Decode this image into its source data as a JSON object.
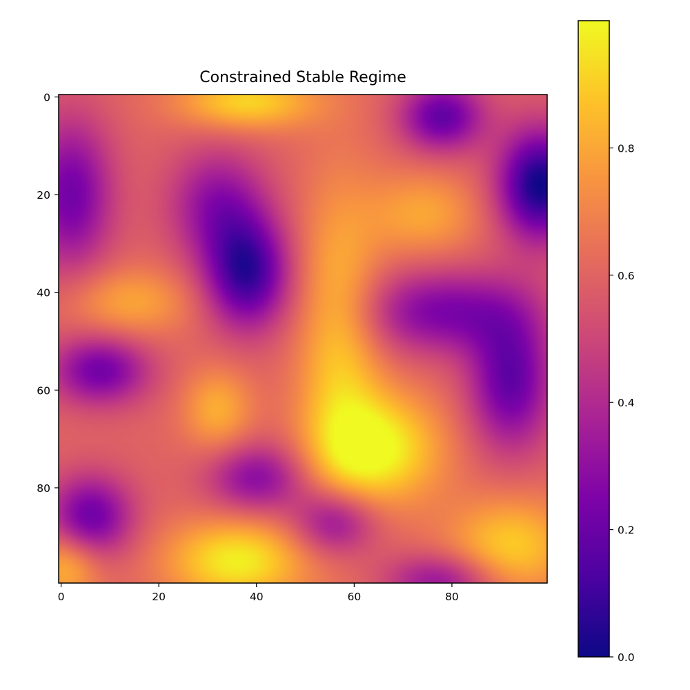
{
  "chart_data": {
    "type": "heatmap",
    "title": "Constrained Stable Regime",
    "xlabel": "",
    "ylabel": "",
    "colormap": "plasma",
    "grid_size": [
      100,
      100
    ],
    "xlim": [
      0,
      99
    ],
    "ylim": [
      99,
      0
    ],
    "x_ticks": [
      0,
      20,
      40,
      60,
      80
    ],
    "y_ticks": [
      0,
      20,
      40,
      60,
      80
    ],
    "colorbar": {
      "vmin": 0.0,
      "vmax": 1.0,
      "ticks": [
        "0.0",
        "0.2",
        "0.4",
        "0.6",
        "0.8"
      ]
    },
    "grid": false,
    "features": [
      {
        "x": 98,
        "y": 18,
        "value": 0.0,
        "sx": 6,
        "sy": 8
      },
      {
        "x": 38,
        "y": 36,
        "value": 0.08,
        "sx": 6,
        "sy": 8
      },
      {
        "x": 2,
        "y": 20,
        "value": 0.22,
        "sx": 6,
        "sy": 11
      },
      {
        "x": 78,
        "y": 4,
        "value": 0.18,
        "sx": 6,
        "sy": 5
      },
      {
        "x": 92,
        "y": 58,
        "value": 0.18,
        "sx": 6,
        "sy": 10
      },
      {
        "x": 78,
        "y": 44,
        "value": 0.25,
        "sx": 12,
        "sy": 6
      },
      {
        "x": 8,
        "y": 56,
        "value": 0.22,
        "sx": 7,
        "sy": 5
      },
      {
        "x": 6,
        "y": 86,
        "value": 0.2,
        "sx": 6,
        "sy": 6
      },
      {
        "x": 40,
        "y": 78,
        "value": 0.28,
        "sx": 7,
        "sy": 5
      },
      {
        "x": 56,
        "y": 87,
        "value": 0.25,
        "sx": 6,
        "sy": 5
      },
      {
        "x": 32,
        "y": 22,
        "value": 0.3,
        "sx": 7,
        "sy": 8
      },
      {
        "x": 78,
        "y": 99,
        "value": 0.3,
        "sx": 8,
        "sy": 4
      },
      {
        "x": 65,
        "y": 72,
        "value": 1.0,
        "sx": 9,
        "sy": 8
      },
      {
        "x": 36,
        "y": 95,
        "value": 0.98,
        "sx": 10,
        "sy": 6
      },
      {
        "x": 38,
        "y": 1,
        "value": 0.92,
        "sx": 10,
        "sy": 4
      },
      {
        "x": 57,
        "y": 50,
        "value": 0.88,
        "sx": 6,
        "sy": 22
      },
      {
        "x": 92,
        "y": 92,
        "value": 0.9,
        "sx": 9,
        "sy": 7
      },
      {
        "x": 32,
        "y": 64,
        "value": 0.82,
        "sx": 5,
        "sy": 6
      },
      {
        "x": 14,
        "y": 42,
        "value": 0.8,
        "sx": 9,
        "sy": 5
      },
      {
        "x": 74,
        "y": 24,
        "value": 0.8,
        "sx": 8,
        "sy": 6
      },
      {
        "x": 1,
        "y": 96,
        "value": 0.85,
        "sx": 5,
        "sy": 5
      }
    ],
    "background_value": 0.6
  }
}
